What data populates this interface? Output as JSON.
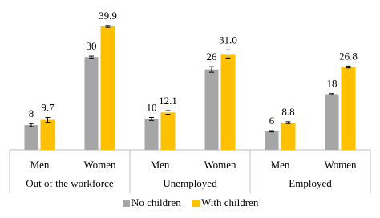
{
  "chart_data": {
    "type": "bar",
    "groups": [
      {
        "label": "Out of the workforce",
        "categories": [
          "Men",
          "Women"
        ]
      },
      {
        "label": "Unemployed",
        "categories": [
          "Men",
          "Women"
        ]
      },
      {
        "label": "Employed",
        "categories": [
          "Men",
          "Women"
        ]
      }
    ],
    "series": [
      {
        "name": "No children",
        "color": "#a6a6a6",
        "values": [
          8,
          30,
          10,
          26,
          6,
          18
        ],
        "errors": [
          0.5,
          0.3,
          0.5,
          0.9,
          0.2,
          0.2
        ]
      },
      {
        "name": "With children",
        "color": "#ffc000",
        "values": [
          9.7,
          39.9,
          12.1,
          31.0,
          8.8,
          26.8
        ],
        "value_labels": [
          "9.7",
          "39.9",
          "12.1",
          "31.0",
          "8.8",
          "26.8"
        ],
        "errors": [
          0.8,
          0.3,
          0.6,
          1.3,
          0.3,
          0.3
        ]
      }
    ]
  }
}
